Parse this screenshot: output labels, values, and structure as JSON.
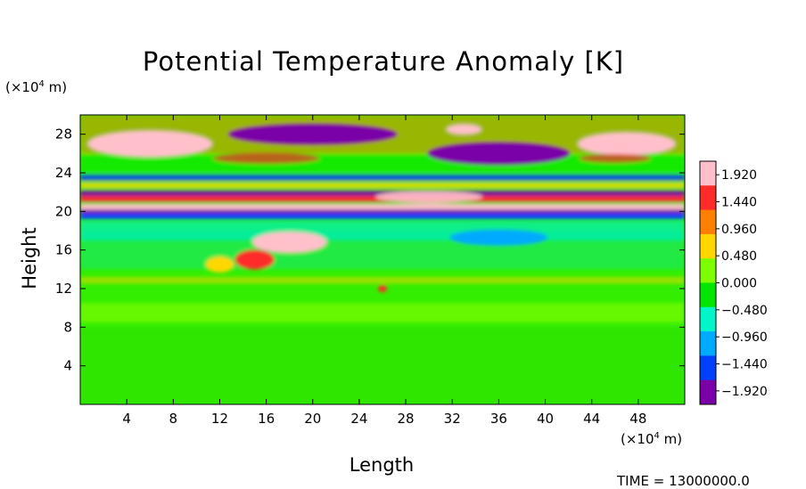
{
  "chart_data": {
    "type": "heatmap",
    "title": "Potential Temperature Anomaly [K]",
    "xlabel": "Length",
    "ylabel": "Height",
    "x_unit_base": "(×10",
    "x_unit_exp": "4",
    "x_unit_tail": " m)",
    "y_unit_base": "(×10",
    "y_unit_exp": "4",
    "y_unit_tail": " m)",
    "x_ticks": [
      "4",
      "8",
      "12",
      "16",
      "20",
      "24",
      "28",
      "32",
      "36",
      "40",
      "44",
      "48"
    ],
    "y_ticks": [
      "4",
      "8",
      "12",
      "16",
      "20",
      "24",
      "28"
    ],
    "xlim": [
      0,
      52
    ],
    "ylim": [
      0,
      30
    ],
    "colorbar_labels": [
      "1.920",
      "1.440",
      "0.960",
      "0.480",
      "0.000",
      "−0.480",
      "−0.960",
      "−1.440",
      "−1.920"
    ],
    "colorbar_range": [
      -2.16,
      2.16
    ],
    "colorbar_colors": [
      "#ffc0cb",
      "#ff2a2a",
      "#ff7f00",
      "#ffd700",
      "#7cff00",
      "#00e600",
      "#00f5c8",
      "#00aaff",
      "#0040ff",
      "#7a00a8"
    ]
  },
  "footer": "TIME = 13000000.0"
}
